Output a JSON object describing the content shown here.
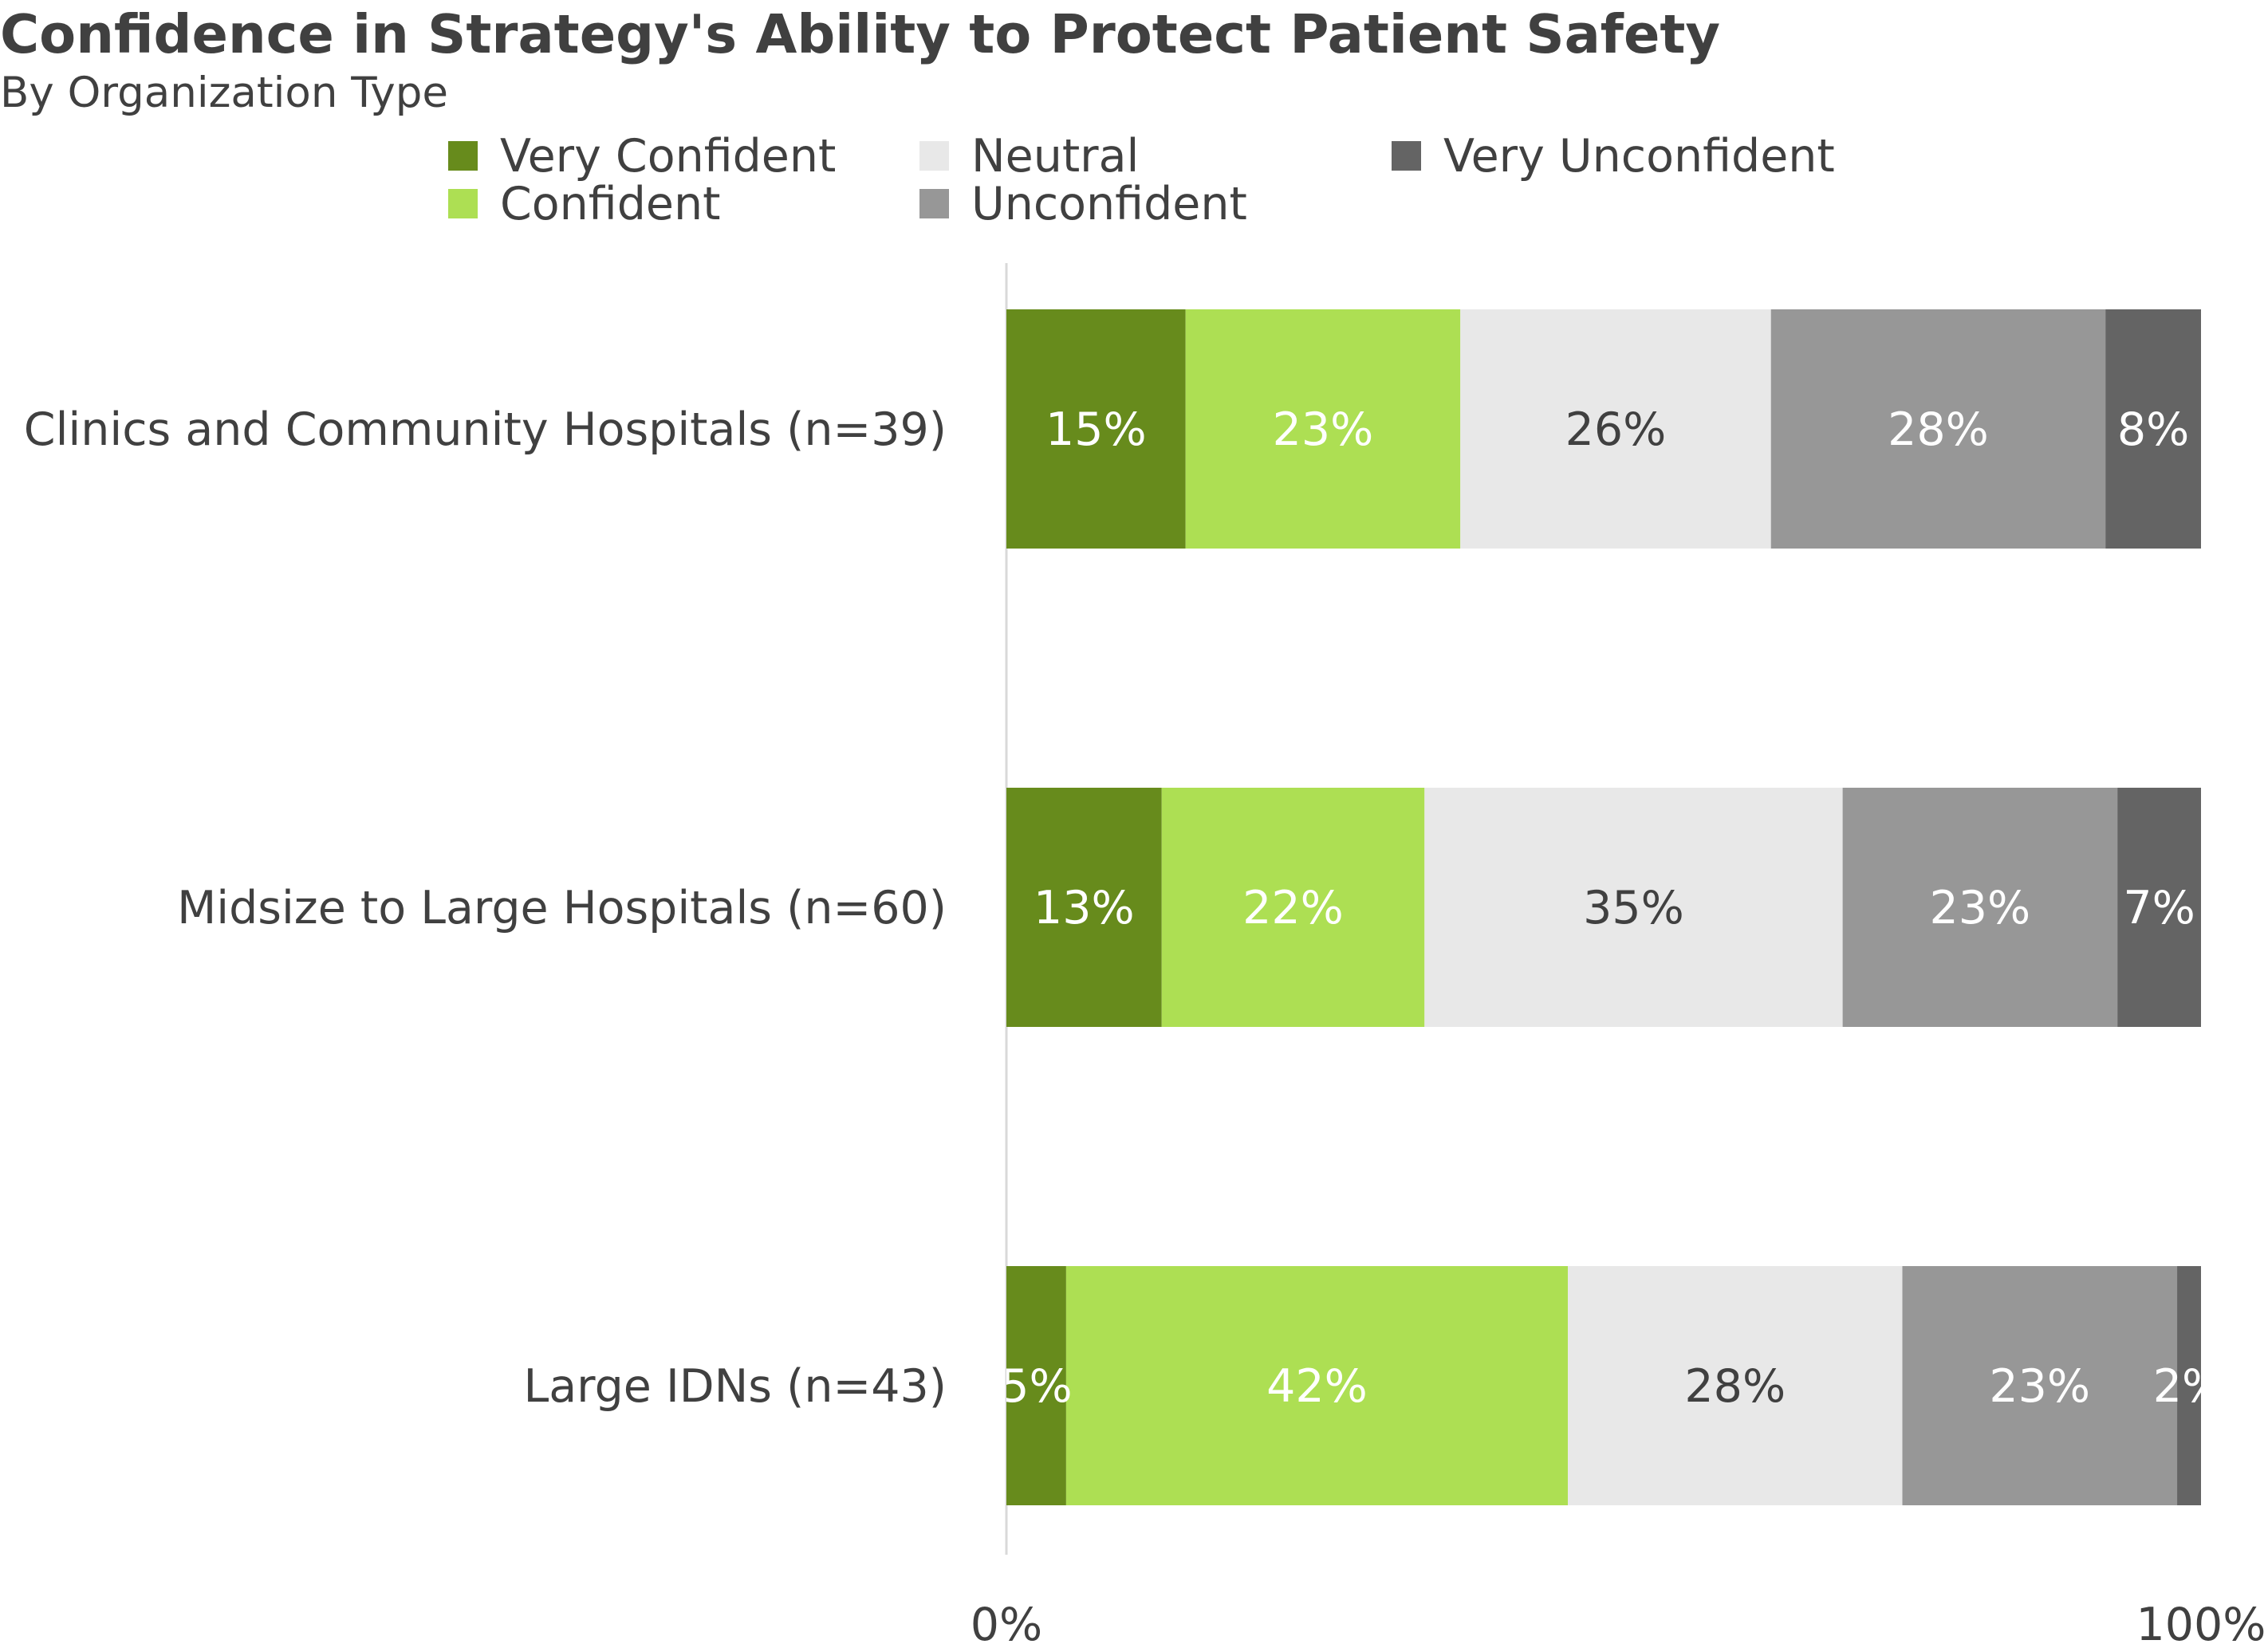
{
  "chart_data": {
    "type": "bar",
    "orientation": "horizontal",
    "stacked": "percent",
    "title": "Confidence in Strategy's Ability to Protect Patient Safety",
    "subtitle": "By Organization Type",
    "categories": [
      "Clinics and Community Hospitals (n=39)",
      "Midsize to Large Hospitals (n=60)",
      "Large IDNs (n=43)"
    ],
    "series": [
      {
        "name": "Very Confident",
        "color": "#678b1c",
        "label_color": "#ffffff",
        "values": [
          15,
          13,
          5
        ]
      },
      {
        "name": "Confident",
        "color": "#addf53",
        "label_color": "#ffffff",
        "values": [
          23,
          22,
          42
        ]
      },
      {
        "name": "Neutral",
        "color": "#e8e8e8",
        "label_color": "#404040",
        "values": [
          26,
          35,
          28
        ]
      },
      {
        "name": "Unconfident",
        "color": "#979797",
        "label_color": "#ffffff",
        "values": [
          28,
          23,
          23
        ]
      },
      {
        "name": "Very Unconfident",
        "color": "#646464",
        "label_color": "#ffffff",
        "values": [
          8,
          7,
          2
        ]
      }
    ],
    "xlim": [
      0,
      100
    ],
    "x_ticks": [
      "0%",
      "100%"
    ],
    "value_suffix": "%",
    "legend_position": "top",
    "grid": false
  }
}
